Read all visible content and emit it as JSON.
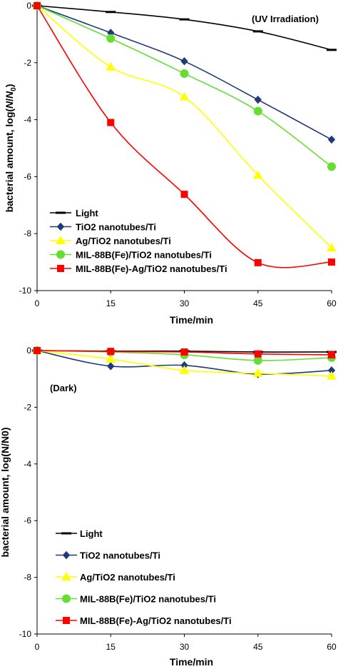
{
  "chart_data": [
    {
      "type": "line",
      "annotation": "(UV Irradiation)",
      "xlabel": "Time/min",
      "ylabel_parts": [
        "bacterial amount, log(",
        "N",
        "/",
        "N",
        "0",
        ")"
      ],
      "x": [
        0,
        15,
        30,
        45,
        60
      ],
      "xlim": [
        0,
        60
      ],
      "ylim": [
        -10,
        0
      ],
      "xticks": [
        "0",
        "15",
        "30",
        "45",
        "60"
      ],
      "yticks": [
        "0",
        "-2",
        "-4",
        "-6",
        "-8",
        "-10"
      ],
      "grid": false,
      "legend_position": "bottom-left",
      "series": [
        {
          "name": "Light",
          "values": [
            0,
            -0.22,
            -0.48,
            -0.9,
            -1.55
          ],
          "color": "#000000",
          "marker": "dash"
        },
        {
          "name": "TiO2 nanotubes/Ti",
          "values": [
            0,
            -0.95,
            -1.95,
            -3.3,
            -4.7
          ],
          "color": "#1f3a7a",
          "marker": "diamond"
        },
        {
          "name": "Ag/TiO2 nanotubes/Ti",
          "values": [
            0,
            -2.15,
            -3.2,
            -5.95,
            -8.5
          ],
          "color": "#ffff00",
          "marker": "triangle"
        },
        {
          "name": "MIL-88B(Fe)/TiO2 nanotubes/Ti",
          "values": [
            0,
            -1.15,
            -2.38,
            -3.7,
            -5.65
          ],
          "color": "#66dd33",
          "marker": "circle"
        },
        {
          "name": "MIL-88B(Fe)-Ag/TiO2 nanotubes/Ti",
          "values": [
            0,
            -4.1,
            -6.62,
            -9.02,
            -9.0
          ],
          "color": "#ff0000",
          "marker": "square"
        }
      ]
    },
    {
      "type": "line",
      "annotation": "(Dark)",
      "xlabel": "Time/min",
      "ylabel_parts": [
        "bacterial amount, log(N/N0)"
      ],
      "x": [
        0,
        15,
        30,
        45,
        60
      ],
      "xlim": [
        0,
        60
      ],
      "ylim": [
        -10,
        0
      ],
      "xticks": [
        "0",
        "15",
        "30",
        "45",
        "60"
      ],
      "yticks": [
        "0",
        "-2",
        "-4",
        "-6",
        "-8",
        "-10"
      ],
      "grid": false,
      "legend_position": "bottom-left",
      "series": [
        {
          "name": "Light",
          "values": [
            0,
            -0.02,
            -0.02,
            -0.05,
            -0.05
          ],
          "color": "#000000",
          "marker": "dash"
        },
        {
          "name": "TiO2 nanotubes/Ti",
          "values": [
            0,
            -0.55,
            -0.52,
            -0.83,
            -0.7
          ],
          "color": "#1f3a7a",
          "marker": "diamond"
        },
        {
          "name": "Ag/TiO2 nanotubes/Ti",
          "values": [
            0,
            -0.3,
            -0.7,
            -0.8,
            -0.9
          ],
          "color": "#ffff00",
          "marker": "triangle"
        },
        {
          "name": "MIL-88B(Fe)/TiO2 nanotubes/Ti",
          "values": [
            0,
            -0.05,
            -0.15,
            -0.35,
            -0.25
          ],
          "color": "#66dd33",
          "marker": "circle"
        },
        {
          "name": "MIL-88B(Fe)-Ag/TiO2 nanotubes/Ti",
          "values": [
            0,
            -0.03,
            -0.05,
            -0.12,
            -0.15
          ],
          "color": "#ff0000",
          "marker": "square"
        }
      ]
    }
  ]
}
